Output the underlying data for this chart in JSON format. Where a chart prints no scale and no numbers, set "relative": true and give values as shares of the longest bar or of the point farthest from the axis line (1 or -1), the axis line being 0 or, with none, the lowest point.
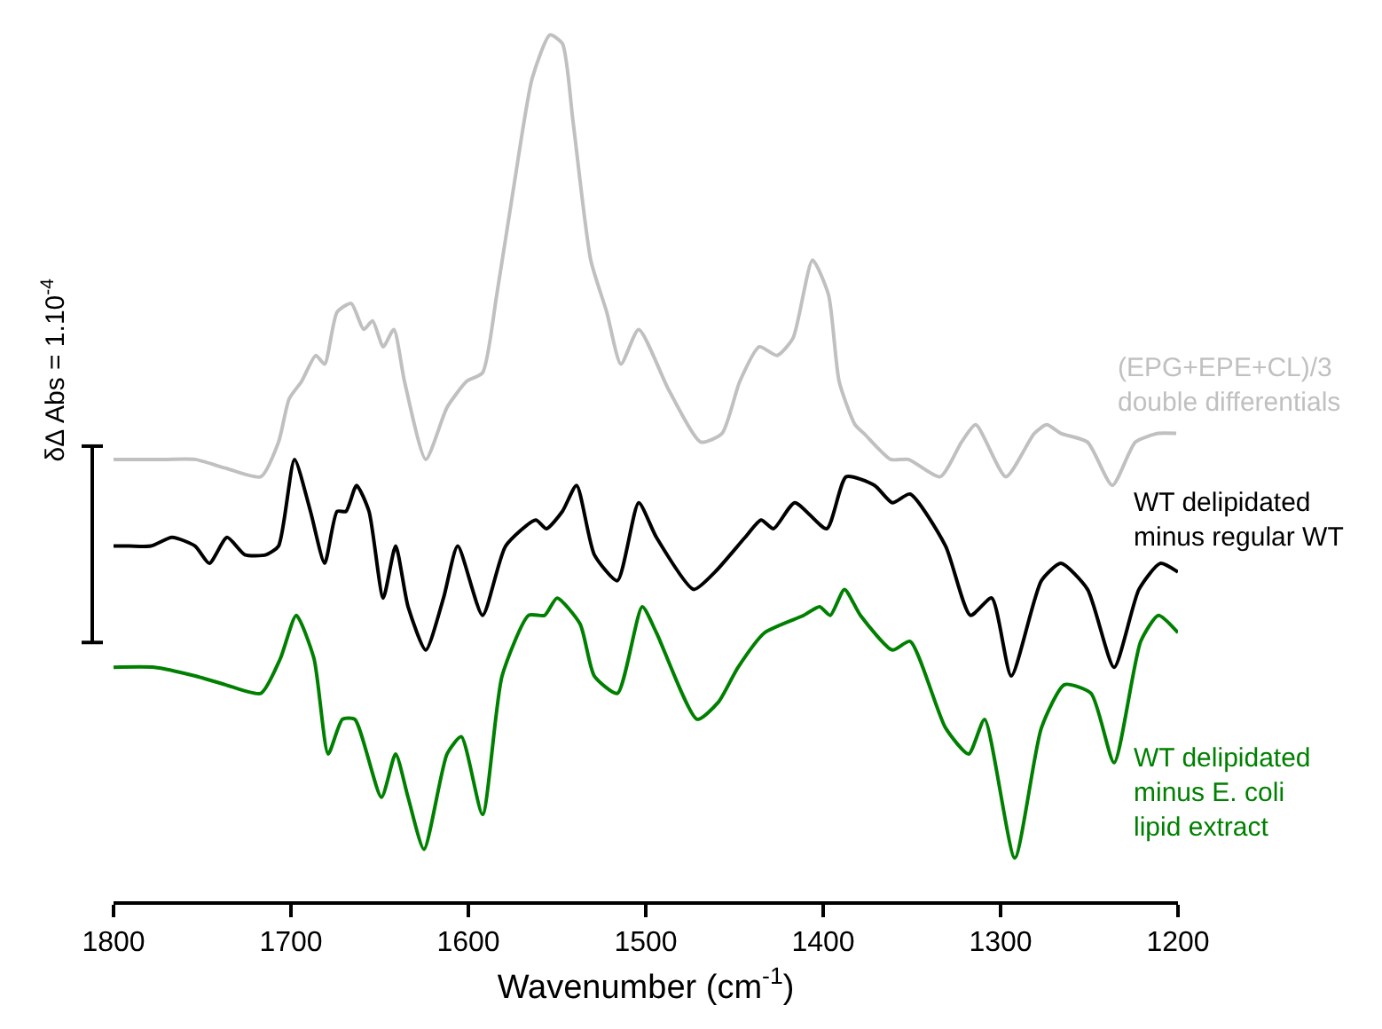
{
  "chart_data": {
    "type": "line",
    "relative": true,
    "xlabel": "Wavenumber (cm$^{-1}$)",
    "ylabel": "δΔ Abs = 1.10$^{-4}$",
    "xlim": [
      1800,
      1200
    ],
    "xticks": [
      1800,
      1700,
      1600,
      1500,
      1400,
      1300,
      1200
    ],
    "legend": false,
    "marker": "none",
    "line_style": "solid",
    "series": [
      {
        "name": "(EPG+EPE+CL)/3\ndouble differentials",
        "color": "#c0c0c0",
        "x": [
          1800,
          1771,
          1754,
          1737,
          1717,
          1707,
          1701,
          1694,
          1686,
          1681,
          1674,
          1666,
          1659,
          1654,
          1648,
          1642,
          1636,
          1624,
          1612,
          1601,
          1592,
          1584,
          1574,
          1564,
          1554,
          1547,
          1541,
          1531,
          1522,
          1514,
          1504,
          1487,
          1469,
          1457,
          1447,
          1436,
          1426,
          1417,
          1406,
          1397,
          1391,
          1382,
          1377,
          1362,
          1352,
          1334,
          1322,
          1314,
          1297,
          1281,
          1274,
          1266,
          1251,
          1237,
          1224,
          1211,
          1201
        ],
        "values": [
          0.51,
          0.51,
          0.51,
          0.5,
          0.49,
          0.53,
          0.58,
          0.6,
          0.63,
          0.62,
          0.68,
          0.69,
          0.66,
          0.67,
          0.64,
          0.66,
          0.6,
          0.51,
          0.57,
          0.6,
          0.61,
          0.7,
          0.83,
          0.95,
          1.0,
          0.99,
          0.9,
          0.74,
          0.68,
          0.62,
          0.66,
          0.59,
          0.53,
          0.54,
          0.6,
          0.64,
          0.63,
          0.65,
          0.74,
          0.7,
          0.6,
          0.55,
          0.54,
          0.51,
          0.51,
          0.49,
          0.53,
          0.55,
          0.49,
          0.54,
          0.55,
          0.54,
          0.53,
          0.48,
          0.53,
          0.54,
          0.54
        ]
      },
      {
        "name": "WT delipidated\nminus regular WT",
        "color": "#000000",
        "x": [
          1800,
          1791,
          1779,
          1767,
          1754,
          1746,
          1736,
          1726,
          1714,
          1707,
          1698,
          1689,
          1681,
          1674,
          1669,
          1663,
          1656,
          1648,
          1641,
          1634,
          1624,
          1614,
          1606,
          1592,
          1579,
          1562,
          1556,
          1547,
          1539,
          1529,
          1516,
          1504,
          1494,
          1473,
          1461,
          1444,
          1435,
          1428,
          1416,
          1398,
          1387,
          1371,
          1361,
          1351,
          1331,
          1317,
          1305,
          1294,
          1277,
          1266,
          1251,
          1236,
          1222,
          1210,
          1200
        ],
        "values": [
          0.41,
          0.41,
          0.41,
          0.42,
          0.41,
          0.39,
          0.42,
          0.4,
          0.4,
          0.41,
          0.51,
          0.45,
          0.39,
          0.45,
          0.45,
          0.48,
          0.45,
          0.35,
          0.41,
          0.34,
          0.29,
          0.35,
          0.41,
          0.33,
          0.41,
          0.44,
          0.43,
          0.45,
          0.48,
          0.4,
          0.37,
          0.46,
          0.42,
          0.36,
          0.38,
          0.42,
          0.44,
          0.43,
          0.46,
          0.43,
          0.49,
          0.48,
          0.46,
          0.47,
          0.41,
          0.33,
          0.35,
          0.26,
          0.37,
          0.39,
          0.36,
          0.27,
          0.36,
          0.39,
          0.38
        ]
      },
      {
        "name": "WT delipidated\nminus E. coli\nlipid extract",
        "color": "#008000",
        "x": [
          1800,
          1777,
          1754,
          1737,
          1717,
          1706,
          1697,
          1687,
          1679,
          1671,
          1664,
          1649,
          1641,
          1634,
          1625,
          1612,
          1604,
          1592,
          1581,
          1566,
          1557,
          1550,
          1537,
          1529,
          1516,
          1502,
          1494,
          1471,
          1459,
          1448,
          1433,
          1411,
          1402,
          1396,
          1388,
          1379,
          1361,
          1351,
          1331,
          1318,
          1309,
          1292,
          1277,
          1264,
          1249,
          1236,
          1221,
          1211,
          1200
        ],
        "values": [
          0.27,
          0.27,
          0.26,
          0.25,
          0.24,
          0.28,
          0.33,
          0.28,
          0.17,
          0.21,
          0.21,
          0.12,
          0.17,
          0.12,
          0.06,
          0.17,
          0.19,
          0.1,
          0.26,
          0.33,
          0.33,
          0.35,
          0.32,
          0.26,
          0.24,
          0.34,
          0.31,
          0.21,
          0.23,
          0.27,
          0.31,
          0.33,
          0.34,
          0.33,
          0.36,
          0.33,
          0.29,
          0.3,
          0.2,
          0.17,
          0.21,
          0.05,
          0.2,
          0.25,
          0.24,
          0.16,
          0.3,
          0.33,
          0.31
        ]
      }
    ]
  }
}
